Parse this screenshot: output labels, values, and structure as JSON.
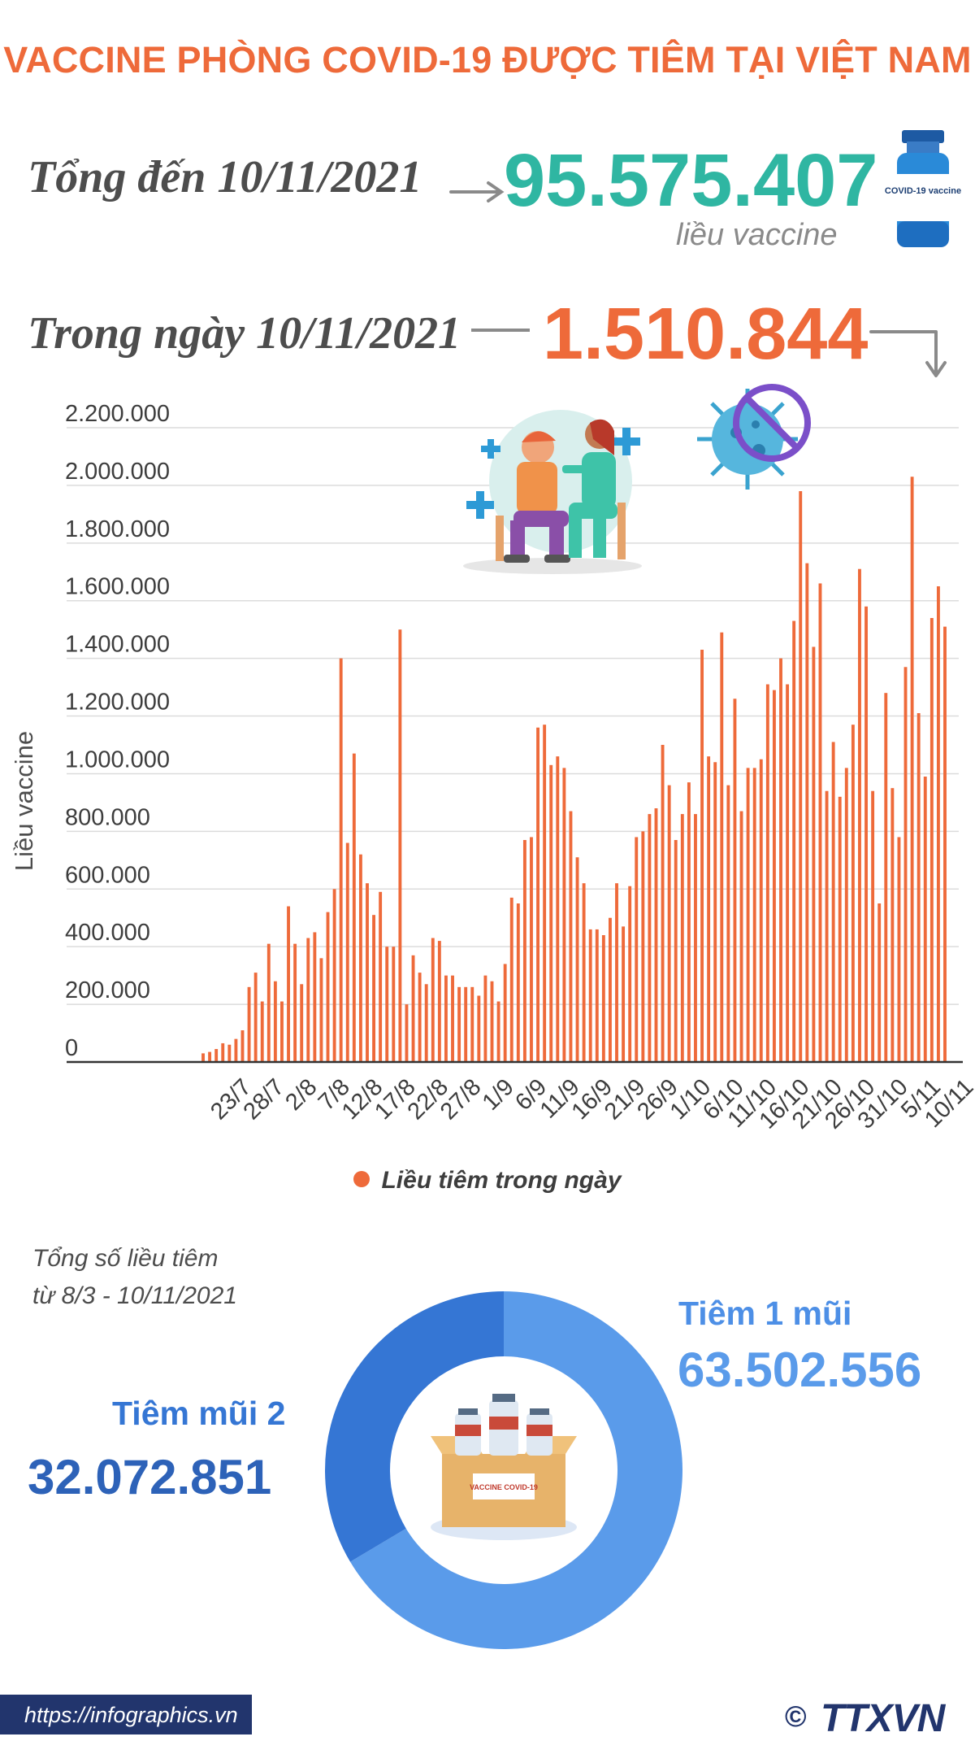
{
  "title": "VACCINE PHÒNG COVID-19 ĐƯỢC TIÊM TẠI VIỆT NAM",
  "total": {
    "label": "Tổng đến 10/11/2021",
    "value": "95.575.407",
    "unit": "liều vaccine"
  },
  "daily": {
    "label": "Trong ngày 10/11/2021",
    "value": "1.510.844"
  },
  "vial_label": "COVID-19 vaccine",
  "box_label": "VACCINE COVID-19",
  "donut": {
    "caption_line1": "Tổng số liều tiêm",
    "caption_line2": "từ 8/3 - 10/11/2021",
    "dose1_label": "Tiêm 1 mũi",
    "dose1_value": "63.502.556",
    "dose2_label": "Tiêm mũi 2",
    "dose2_value": "32.072.851"
  },
  "footer": {
    "url": "https://infographics.vn",
    "copyright": "©",
    "logo": "TTXVN"
  },
  "colors": {
    "accent": "#ee6a3a",
    "teal": "#2fb6a2",
    "dose1": "#5a9bea",
    "dose2": "#2d62b8",
    "navy": "#22356d"
  },
  "chart_data": {
    "type": "bar",
    "ylabel": "Liều vaccine",
    "ylim": [
      0,
      2200000
    ],
    "ytick_labels": [
      "0",
      "200.000",
      "400.000",
      "600.000",
      "800.000",
      "1.000.000",
      "1.200.000",
      "1.400.000",
      "1.600.000",
      "1.800.000",
      "2.000.000",
      "2.200.000"
    ],
    "ytick_values": [
      0,
      200000,
      400000,
      600000,
      800000,
      1000000,
      1200000,
      1400000,
      1600000,
      1800000,
      2000000,
      2200000
    ],
    "xtick_labels": [
      "23/7",
      "28/7",
      "2/8",
      "7/8",
      "12/8",
      "17/8",
      "22/8",
      "27/8",
      "1/9",
      "6/9",
      "11/9",
      "16/9",
      "21/9",
      "26/9",
      "1/10",
      "6/10",
      "11/10",
      "16/10",
      "21/10",
      "26/10",
      "31/10",
      "5/11",
      "10/11"
    ],
    "start_date": "2021-07-19",
    "end_date": "2021-11-10",
    "values": [
      30000,
      35000,
      45000,
      65000,
      60000,
      80000,
      110000,
      260000,
      310000,
      210000,
      410000,
      280000,
      210000,
      540000,
      410000,
      270000,
      430000,
      450000,
      360000,
      520000,
      600000,
      1400000,
      760000,
      1070000,
      720000,
      620000,
      510000,
      590000,
      400000,
      400000,
      1500000,
      200000,
      370000,
      310000,
      270000,
      430000,
      420000,
      300000,
      300000,
      260000,
      260000,
      260000,
      230000,
      300000,
      280000,
      210000,
      340000,
      570000,
      550000,
      770000,
      780000,
      1160000,
      1170000,
      1030000,
      1060000,
      1020000,
      870000,
      710000,
      620000,
      460000,
      460000,
      440000,
      500000,
      620000,
      470000,
      610000,
      780000,
      800000,
      860000,
      880000,
      1100000,
      960000,
      770000,
      860000,
      970000,
      860000,
      1430000,
      1060000,
      1040000,
      1490000,
      960000,
      1260000,
      870000,
      1020000,
      1020000,
      1050000,
      1310000,
      1290000,
      1400000,
      1310000,
      1530000,
      1980000,
      1730000,
      1440000,
      1660000,
      940000,
      1110000,
      920000,
      1020000,
      1170000,
      1710000,
      1580000,
      940000,
      550000,
      1280000,
      950000,
      780000,
      1370000,
      2030000,
      1210000,
      990000,
      1540000,
      1650000,
      1510000
    ],
    "series": [
      {
        "name": "Liều tiêm trong ngày",
        "values_ref": "values"
      }
    ],
    "legend_position": "bottom"
  },
  "donut_chart": {
    "type": "pie",
    "categories": [
      "Tiêm 1 mũi",
      "Tiêm mũi 2"
    ],
    "values": [
      63502556,
      32072851
    ]
  }
}
